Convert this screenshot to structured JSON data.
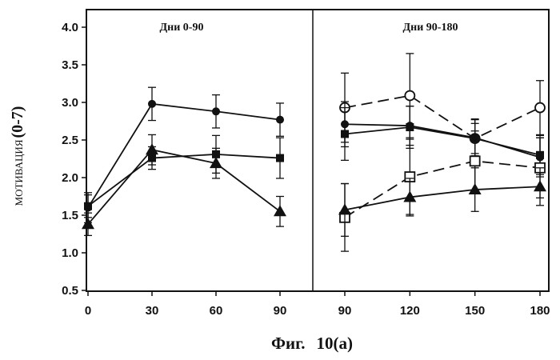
{
  "chart_data": {
    "type": "line",
    "ylabel": "МОТИВАЦИЯ",
    "ylabel_range": "(0-7)",
    "caption": "Фиг.",
    "caption_number": "10(a)",
    "ylim": [
      0.5,
      4.0
    ],
    "yticks": [
      "0.5",
      "1.0",
      "1.5",
      "2.0",
      "2.5",
      "3.0",
      "3.5",
      "4.0"
    ],
    "panels": [
      {
        "title": "Дни 0-90",
        "x": [
          0,
          30,
          60,
          90
        ],
        "xticks": [
          "0",
          "30",
          "60",
          "90"
        ],
        "series": [
          {
            "marker": "filled-circle",
            "line": "solid",
            "values": [
              1.6,
              2.98,
              2.88,
              2.77
            ],
            "errors": [
              0.2,
              0.22,
              0.22,
              0.22
            ]
          },
          {
            "marker": "filled-square",
            "line": "solid",
            "values": [
              1.62,
              2.26,
              2.31,
              2.26
            ],
            "errors": [
              0.15,
              0.15,
              0.25,
              0.27
            ]
          },
          {
            "marker": "filled-triangle",
            "line": "solid",
            "values": [
              1.38,
              2.37,
              2.19,
              1.55
            ],
            "errors": [
              0.15,
              0.2,
              0.2,
              0.2
            ]
          }
        ]
      },
      {
        "title": "Дни 90-180",
        "x": [
          90,
          120,
          150,
          180
        ],
        "xticks": [
          "90",
          "120",
          "150",
          "180"
        ],
        "series": [
          {
            "marker": "open-circle",
            "line": "dashed",
            "values": [
              2.93,
              3.09,
              2.52,
              2.93
            ],
            "errors": [
              0.46,
              0.56,
              0.2,
              0.36
            ]
          },
          {
            "marker": "filled-circle",
            "line": "solid",
            "values": [
              2.71,
              2.69,
              2.53,
              2.27
            ],
            "errors": [
              0.3,
              0.26,
              0.24,
              0.26
            ]
          },
          {
            "marker": "filled-square",
            "line": "solid",
            "values": [
              2.58,
              2.67,
              2.52,
              2.3
            ],
            "errors": [
              0.35,
              0.28,
              0.26,
              0.26
            ]
          },
          {
            "marker": "open-square",
            "line": "dashed",
            "values": [
              1.47,
              2.01,
              2.22,
              2.13
            ],
            "errors": [
              0.45,
              0.5,
              0.4,
              0.4
            ]
          },
          {
            "marker": "filled-triangle",
            "line": "solid",
            "values": [
              1.57,
              1.74,
              1.84,
              1.88
            ],
            "errors": [
              0.35,
              0.25,
              0.29,
              0.25
            ]
          }
        ]
      }
    ]
  }
}
